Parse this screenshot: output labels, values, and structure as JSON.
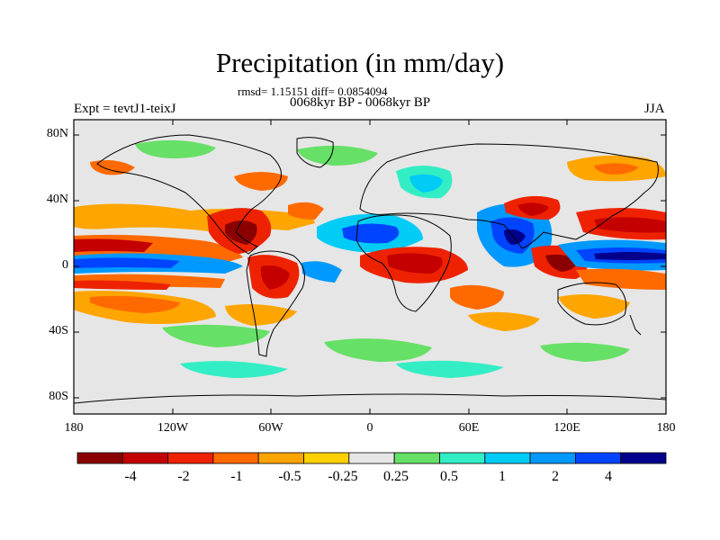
{
  "title": "Precipitation (in mm/day)",
  "stats": "rmsd= 1.15151 diff= 0.0854094",
  "period": "0068kyr BP - 0068kyr BP",
  "expt": "Expt = tevtJ1-teixJ",
  "season": "JJA",
  "axes": {
    "y_labels": [
      "80N",
      "40N",
      "0",
      "40S",
      "80S"
    ],
    "x_labels": [
      "180",
      "120W",
      "60W",
      "0",
      "60E",
      "120E",
      "180"
    ]
  },
  "colorbar": {
    "labels": [
      "-4",
      "-2",
      "-1",
      "-0.5",
      "-0.25",
      "0.25",
      "0.5",
      "1",
      "2",
      "4"
    ],
    "colors": [
      "#8b0000",
      "#c40000",
      "#ee2200",
      "#ff6a00",
      "#ffa500",
      "#ffd000",
      "#e6e6e6",
      "#66e066",
      "#33eec4",
      "#00ccf5",
      "#0099ff",
      "#0044ff",
      "#00008b"
    ]
  },
  "map_colors": {
    "neutral": "#e6e6e6",
    "coast": "#000000"
  }
}
